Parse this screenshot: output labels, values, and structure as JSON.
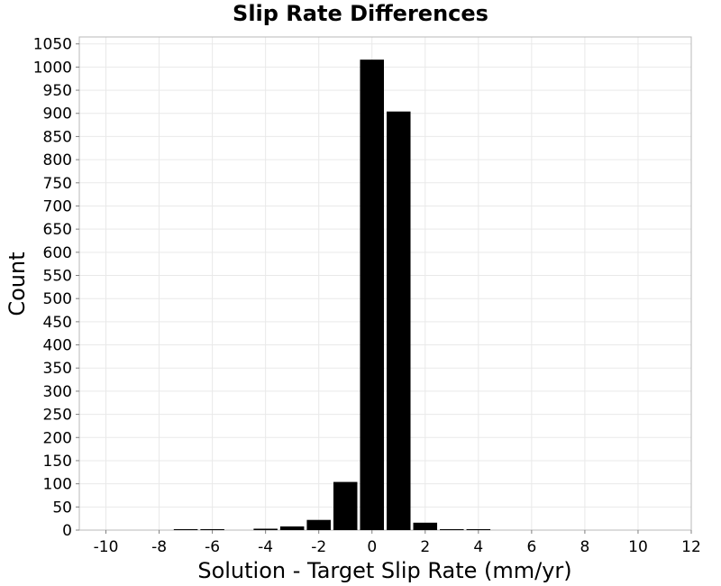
{
  "chart_data": {
    "type": "bar",
    "title": "Slip Rate Differences",
    "xlabel": "Solution - Target Slip Rate (mm/yr)",
    "ylabel": "Count",
    "xlim": [
      -11,
      12
    ],
    "ylim": [
      0,
      1065
    ],
    "xticks": [
      -10,
      -8,
      -6,
      -4,
      -2,
      0,
      2,
      4,
      6,
      8,
      10,
      12
    ],
    "xtick_labels": [
      "-10",
      "-8",
      "-6",
      "-4",
      "-2",
      "0",
      "2",
      "4",
      "6",
      "8",
      "10",
      "12"
    ],
    "yticks": [
      0,
      50,
      100,
      150,
      200,
      250,
      300,
      350,
      400,
      450,
      500,
      550,
      600,
      650,
      700,
      750,
      800,
      850,
      900,
      950,
      1000,
      1050
    ],
    "ytick_labels": [
      "0",
      "50",
      "100",
      "150",
      "200",
      "250",
      "300",
      "350",
      "400",
      "450",
      "500",
      "550",
      "600",
      "650",
      "700",
      "750",
      "800",
      "850",
      "900",
      "950",
      "1000",
      "1050"
    ],
    "bin_width": 1,
    "bins": [
      {
        "center": -7,
        "count": 1
      },
      {
        "center": -6,
        "count": 2
      },
      {
        "center": -4,
        "count": 3
      },
      {
        "center": -3,
        "count": 8
      },
      {
        "center": -2,
        "count": 22
      },
      {
        "center": -1,
        "count": 104
      },
      {
        "center": 0,
        "count": 1016
      },
      {
        "center": 1,
        "count": 904
      },
      {
        "center": 2,
        "count": 16
      },
      {
        "center": 3,
        "count": 1
      },
      {
        "center": 4,
        "count": 2
      }
    ],
    "grid": true,
    "legend": "none",
    "colors": {
      "bar": "#000000",
      "grid": "#e9e9e9",
      "frame": "#b8b8b8"
    }
  }
}
